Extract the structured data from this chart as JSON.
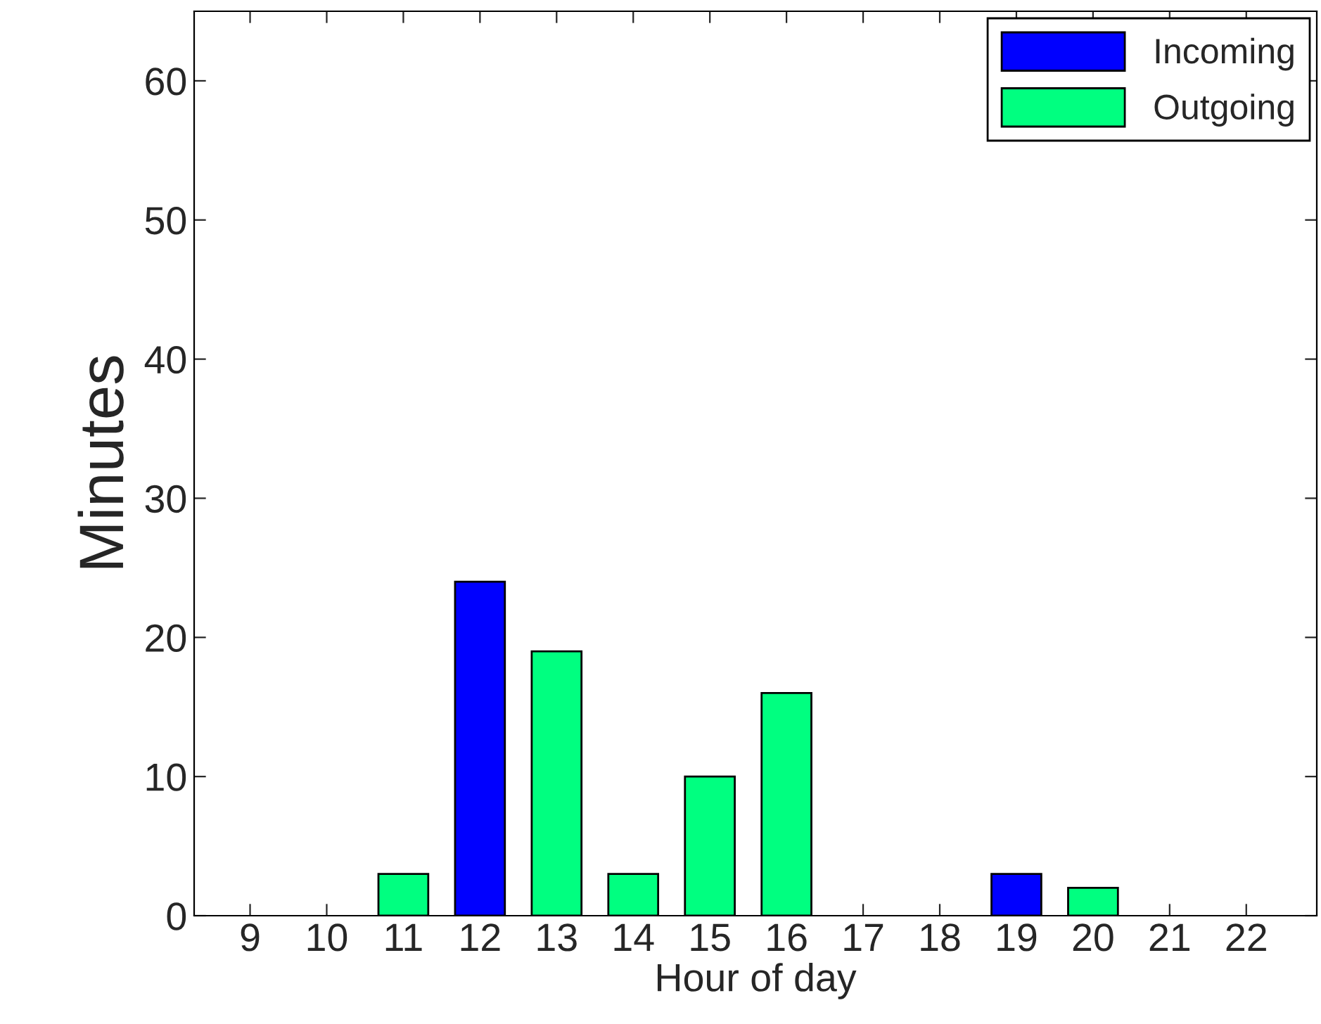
{
  "chart_data": {
    "type": "bar",
    "stacked": true,
    "xlabel": "Hour of day",
    "ylabel": "Minutes",
    "categories": [
      "9",
      "10",
      "11",
      "12",
      "13",
      "14",
      "15",
      "16",
      "17",
      "18",
      "19",
      "20",
      "21",
      "22"
    ],
    "series": [
      {
        "name": "Incoming",
        "color": "#0000ff",
        "values": [
          null,
          null,
          null,
          24,
          null,
          null,
          null,
          null,
          null,
          null,
          3,
          null,
          null,
          null
        ]
      },
      {
        "name": "Outgoing",
        "color": "#00ff80",
        "values": [
          null,
          null,
          3,
          null,
          19,
          3,
          10,
          16,
          null,
          null,
          null,
          2,
          null,
          null
        ]
      }
    ],
    "ylim": [
      0,
      65
    ],
    "yticks": [
      0,
      10,
      20,
      30,
      40,
      50,
      60
    ],
    "grid": false,
    "legend": "top right"
  }
}
